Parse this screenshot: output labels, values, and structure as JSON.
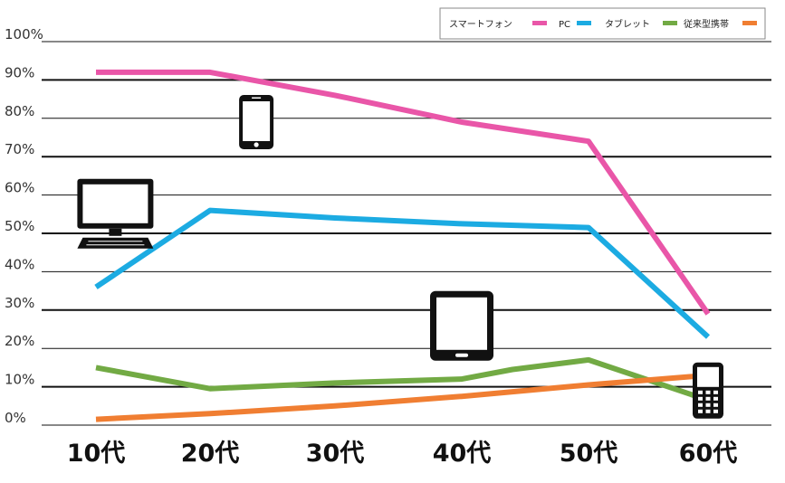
{
  "chart_data": {
    "type": "line",
    "categories": [
      "10代",
      "20代",
      "30代",
      "40代",
      "50代",
      "60代"
    ],
    "x": [
      0,
      1,
      2,
      3,
      4,
      5
    ],
    "ylim": [
      0,
      100
    ],
    "yticks": [
      "0%",
      "10%",
      "20%",
      "30%",
      "40%",
      "50%",
      "60%",
      "70%",
      "80%",
      "90%",
      "100%"
    ],
    "grid": true,
    "legend_position": "top-right",
    "series": [
      {
        "name": "スマートフォン",
        "color": "#e956a8",
        "points": [
          [
            0,
            92
          ],
          [
            1,
            92
          ],
          [
            2,
            86
          ],
          [
            3,
            79
          ],
          [
            4,
            74
          ],
          [
            5,
            29
          ]
        ]
      },
      {
        "name": "PC",
        "color": "#1cabe2",
        "points": [
          [
            0,
            36
          ],
          [
            1,
            56
          ],
          [
            2,
            54
          ],
          [
            3,
            52.5
          ],
          [
            4,
            51.5
          ],
          [
            5,
            23
          ]
        ]
      },
      {
        "name": "タブレット",
        "color": "#72aa44",
        "points": [
          [
            0,
            15
          ],
          [
            1,
            9.5
          ],
          [
            2,
            11
          ],
          [
            3,
            12
          ],
          [
            3.4,
            14.5
          ],
          [
            4,
            17
          ],
          [
            5,
            6.5
          ]
        ]
      },
      {
        "name": "従来型携帯",
        "color": "#f07e32",
        "points": [
          [
            0,
            1.5
          ],
          [
            1,
            3
          ],
          [
            2,
            5
          ],
          [
            3,
            7.5
          ],
          [
            4,
            10.5
          ],
          [
            5,
            13
          ]
        ]
      }
    ],
    "icons": [
      {
        "name": "smartphone-icon",
        "x": 1.37,
        "y": 79
      },
      {
        "name": "desktop-computer-icon",
        "x": 0.17,
        "y": 55
      },
      {
        "name": "tablet-icon",
        "x": 3,
        "y": 26
      },
      {
        "name": "feature-phone-icon",
        "x": 5.16,
        "y": 9
      }
    ]
  }
}
